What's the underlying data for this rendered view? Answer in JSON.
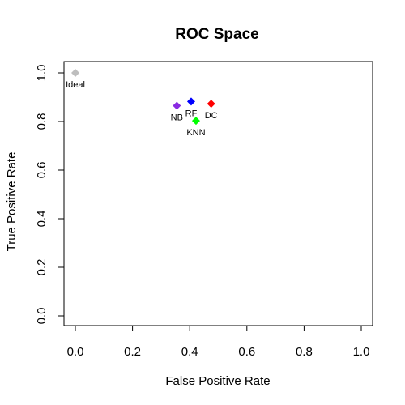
{
  "chart_data": {
    "type": "scatter",
    "title": "ROC Space",
    "xlabel": "False Positive Rate",
    "ylabel": "True Positive Rate",
    "xlim": [
      0,
      1
    ],
    "ylim": [
      0,
      1
    ],
    "xticks": [
      "0.0",
      "0.2",
      "0.4",
      "0.6",
      "0.8",
      "1.0"
    ],
    "yticks": [
      "0.0",
      "0.2",
      "0.4",
      "0.6",
      "0.8",
      "1.0"
    ],
    "grid": false,
    "points": [
      {
        "label": "Ideal",
        "x": 0.0,
        "y": 1.0,
        "color": "#bebebe",
        "label_pos": "below"
      },
      {
        "label": "NB",
        "x": 0.355,
        "y": 0.865,
        "color": "#8a2be2",
        "label_pos": "below"
      },
      {
        "label": "RF",
        "x": 0.405,
        "y": 0.882,
        "color": "#0000ff",
        "label_pos": "below"
      },
      {
        "label": "DC",
        "x": 0.475,
        "y": 0.873,
        "color": "#ff0000",
        "label_pos": "below"
      },
      {
        "label": "KNN",
        "x": 0.422,
        "y": 0.803,
        "color": "#00ff00",
        "label_pos": "below"
      }
    ]
  }
}
